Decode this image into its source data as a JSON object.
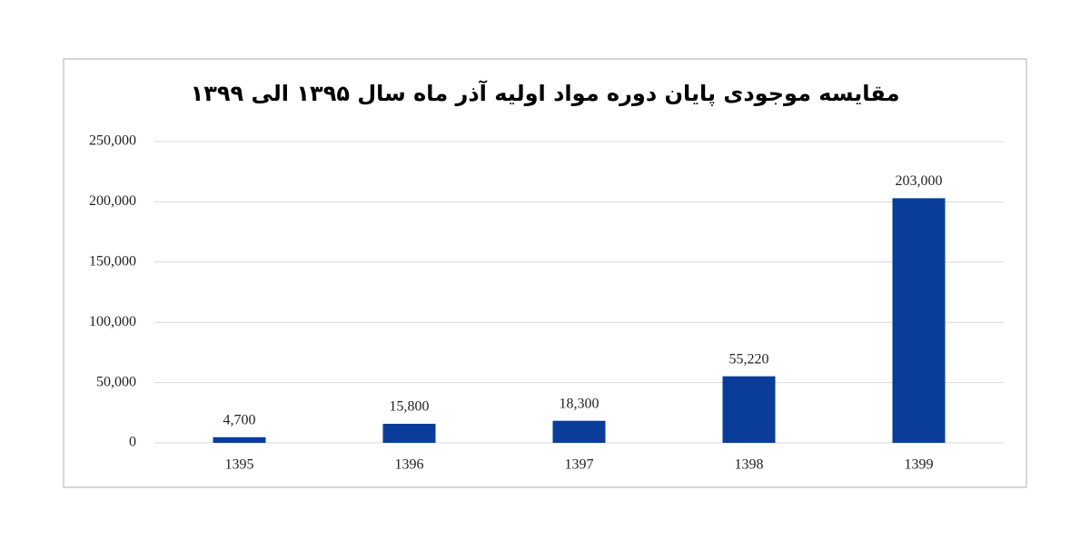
{
  "chart_data": {
    "type": "bar",
    "title": "مقایسه موجودی پایان دوره مواد اولیه آذر ماه سال ۱۳۹۵ الی ۱۳۹۹",
    "categories": [
      "1395",
      "1396",
      "1397",
      "1398",
      "1399"
    ],
    "values": [
      4700,
      15800,
      18300,
      55220,
      203000
    ],
    "value_labels": [
      "4,700",
      "15,800",
      "18,300",
      "55,220",
      "203,000"
    ],
    "color": "#0a3d9a",
    "ylim": [
      0,
      250000
    ],
    "yticks": [
      0,
      {
        "value": 50000,
        "label": "50,000"
      },
      {
        "value": 100000,
        "label": "100,000"
      },
      {
        "value": 150000,
        "label": "150,000"
      },
      {
        "value": 200000,
        "label": "200,000"
      },
      {
        "value": 250000,
        "label": "250,000"
      }
    ],
    "grid": true
  }
}
